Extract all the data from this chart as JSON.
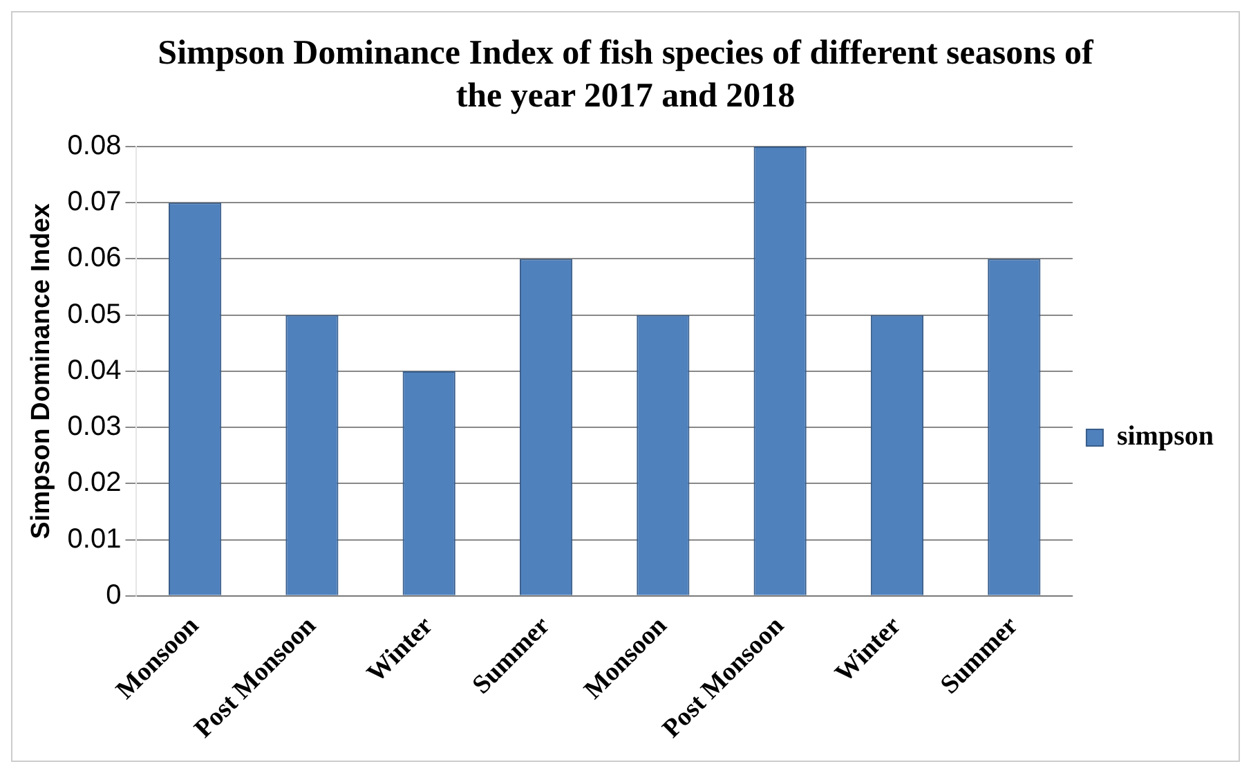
{
  "chart_data": {
    "type": "bar",
    "title": "Simpson Dominance Index of fish species of different seasons of the year 2017 and 2018",
    "ylabel": "Simpson Dominance Index",
    "categories": [
      "Monsoon",
      "Post Monsoon",
      "Winter",
      "Summer",
      "Monsoon",
      "Post Monsoon",
      "Winter",
      "Summer"
    ],
    "series": [
      {
        "name": "simpson",
        "color": "#4f81bd",
        "values": [
          0.07,
          0.05,
          0.04,
          0.06,
          0.05,
          0.08,
          0.05,
          0.06
        ]
      }
    ],
    "ylim": [
      0,
      0.08
    ],
    "yticks": [
      0,
      0.01,
      0.02,
      0.03,
      0.04,
      0.05,
      0.06,
      0.07,
      0.08
    ],
    "grid": "y",
    "legend": "right"
  }
}
